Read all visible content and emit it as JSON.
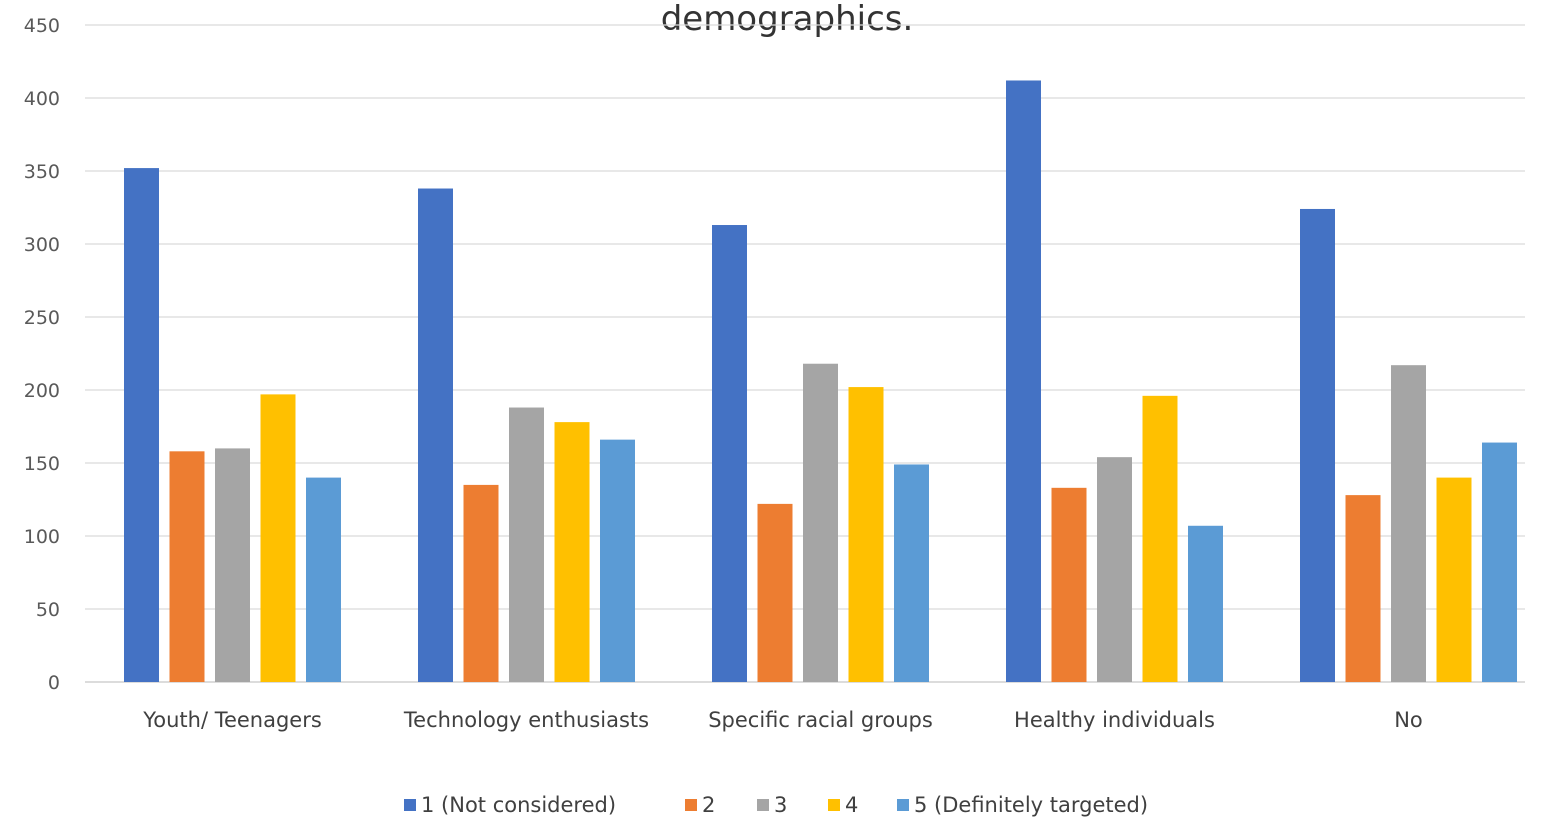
{
  "chart_data": {
    "type": "bar",
    "title": "demographics.",
    "xlabel": "",
    "ylabel": "",
    "ylim": [
      0,
      450
    ],
    "yticks": [
      0,
      50,
      100,
      150,
      200,
      250,
      300,
      350,
      400,
      450
    ],
    "grid": true,
    "legend_position": "bottom",
    "categories": [
      "Youth/ Teenagers",
      "Technology enthusiasts",
      "Specific racial groups",
      "Healthy individuals",
      "No"
    ],
    "series": [
      {
        "name": "1 (Not considered)",
        "color": "#4472C4",
        "values": [
          352,
          338,
          313,
          412,
          324
        ]
      },
      {
        "name": "2",
        "color": "#ED7D31",
        "values": [
          158,
          135,
          122,
          133,
          128
        ]
      },
      {
        "name": "3",
        "color": "#A5A5A5",
        "values": [
          160,
          188,
          218,
          154,
          217
        ]
      },
      {
        "name": "4",
        "color": "#FFC000",
        "values": [
          197,
          178,
          202,
          196,
          140
        ]
      },
      {
        "name": "5 (Definitely targeted)",
        "color": "#5B9BD5",
        "values": [
          140,
          166,
          149,
          107,
          164
        ]
      }
    ]
  }
}
